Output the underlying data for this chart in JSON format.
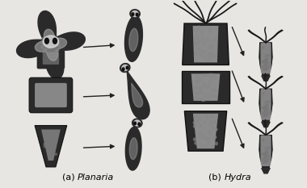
{
  "background_color": "#e8e6e3",
  "label_a": "(a) ",
  "label_a_italic": "Planaria",
  "label_b": "(b) ",
  "label_b_italic": "Hydra",
  "label_fontsize": 8,
  "figsize": [
    3.8,
    2.33
  ],
  "dpi": 100,
  "dark": "#2a2a2a",
  "mid": "#555555",
  "light_spot": "#c8c8c8",
  "arrow_color": "#222222",
  "bg": "#e8e6e3"
}
